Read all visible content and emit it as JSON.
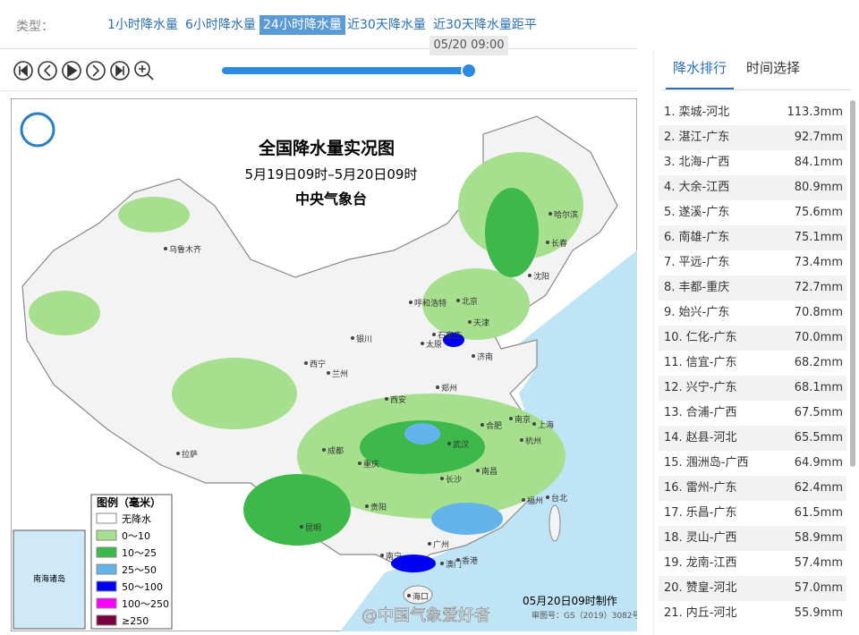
{
  "filter": {
    "label": "类型：",
    "tabs": [
      "1小时降水量",
      "6小时降水量",
      "24小时降水量",
      "近30天降水量",
      "近30天降水量距平"
    ],
    "active": 2
  },
  "player": {
    "time": "05/20 09:00"
  },
  "map": {
    "title": "全国降水量实况图",
    "period": "5月19日09时–5月20日09时",
    "issuer": "中央气象台",
    "legend_title": "图例（毫米）",
    "legend": [
      {
        "label": "无降水",
        "color": "#ffffff"
      },
      {
        "label": "0～10",
        "color": "#a6e08e"
      },
      {
        "label": "10～25",
        "color": "#3cb94a"
      },
      {
        "label": "25～50",
        "color": "#62b4ea"
      },
      {
        "label": "50～100",
        "color": "#0000f0"
      },
      {
        "label": "100～250",
        "color": "#ff00ff"
      },
      {
        "label": "≥250",
        "color": "#7a0040"
      }
    ],
    "cities": [
      "哈尔滨",
      "长春",
      "乌鲁木齐",
      "沈阳",
      "呼和浩特",
      "北京",
      "天津",
      "银川",
      "太原",
      "石家庄",
      "济南",
      "西宁",
      "兰州",
      "西安",
      "郑州",
      "合肥",
      "南京",
      "上海",
      "杭州",
      "武汉",
      "成都",
      "重庆",
      "拉萨",
      "长沙",
      "南昌",
      "福州",
      "台北",
      "贵阳",
      "昆明",
      "南宁",
      "广州",
      "澳门",
      "香港",
      "海口"
    ],
    "inset_label": "南海诸岛",
    "made": "05月20日09时制作",
    "review": "审图号：GS（2019）3082号",
    "watermark": "@中国气象爱好者"
  },
  "panel": {
    "tabs": [
      "降水排行",
      "时间选择"
    ],
    "active": 0,
    "ranking": [
      {
        "name": "1. 栾城-河北",
        "value": "113.3mm"
      },
      {
        "name": "2. 湛江-广东",
        "value": "92.7mm"
      },
      {
        "name": "3. 北海-广西",
        "value": "84.1mm"
      },
      {
        "name": "4. 大余-江西",
        "value": "80.9mm"
      },
      {
        "name": "5. 遂溪-广东",
        "value": "75.6mm"
      },
      {
        "name": "6. 南雄-广东",
        "value": "75.1mm"
      },
      {
        "name": "7. 平远-广东",
        "value": "73.4mm"
      },
      {
        "name": "8. 丰都-重庆",
        "value": "72.7mm"
      },
      {
        "name": "9. 始兴-广东",
        "value": "70.8mm"
      },
      {
        "name": "10. 仁化-广东",
        "value": "70.0mm"
      },
      {
        "name": "11. 信宜-广东",
        "value": "68.2mm"
      },
      {
        "name": "12. 兴宁-广东",
        "value": "68.1mm"
      },
      {
        "name": "13. 合浦-广西",
        "value": "67.5mm"
      },
      {
        "name": "14. 赵县-河北",
        "value": "65.5mm"
      },
      {
        "name": "15. 涠洲岛-广西",
        "value": "64.9mm"
      },
      {
        "name": "16. 雷州-广东",
        "value": "62.4mm"
      },
      {
        "name": "17. 乐昌-广东",
        "value": "61.5mm"
      },
      {
        "name": "18. 灵山-广西",
        "value": "58.9mm"
      },
      {
        "name": "19. 龙南-江西",
        "value": "57.4mm"
      },
      {
        "name": "20. 赞皇-河北",
        "value": "57.0mm"
      },
      {
        "name": "21. 内丘-河北",
        "value": "55.9mm"
      }
    ]
  }
}
